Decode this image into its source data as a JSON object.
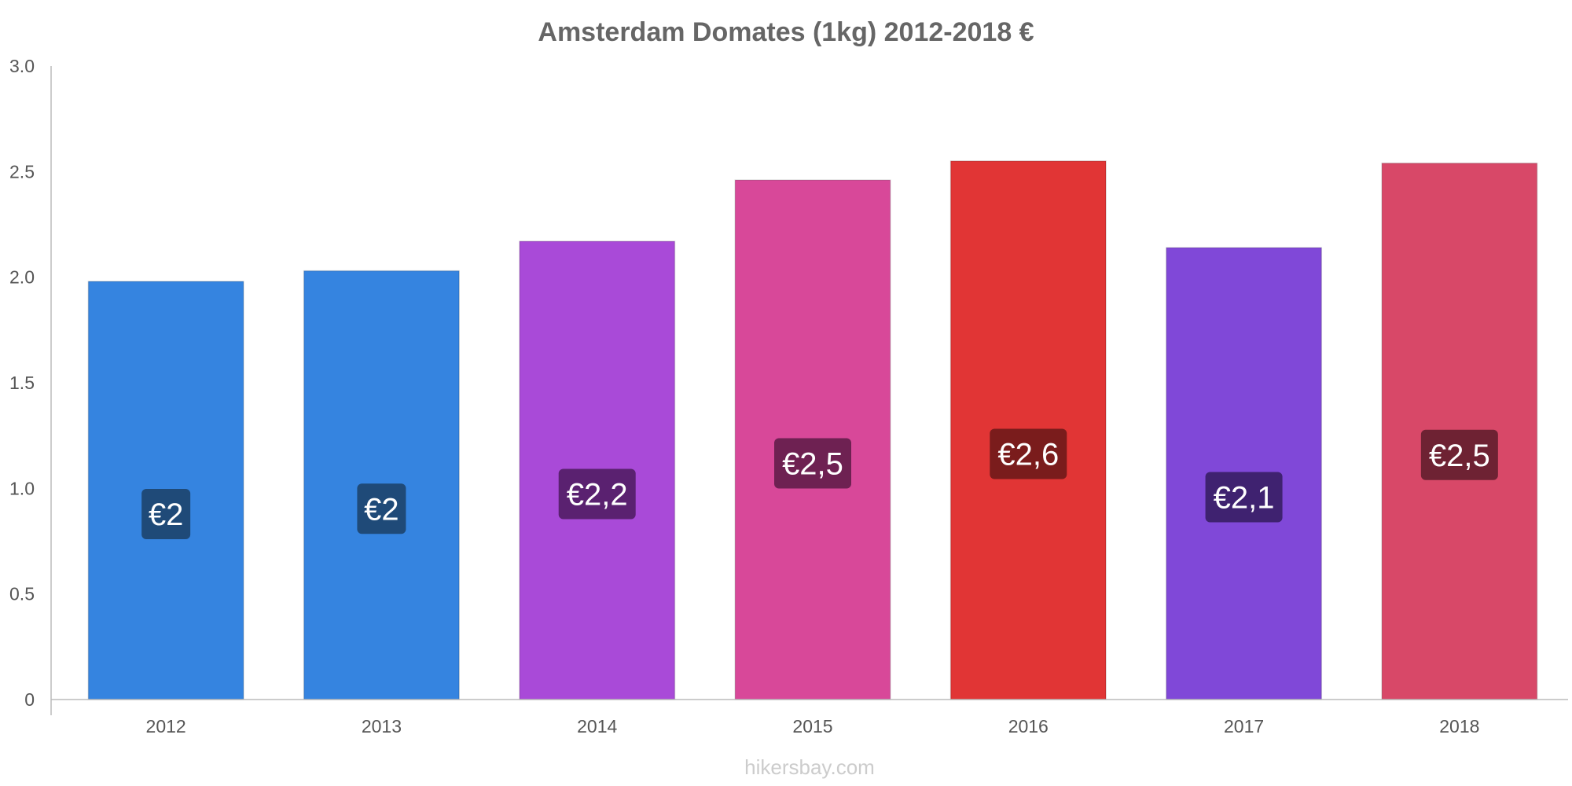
{
  "chart_data": {
    "type": "bar",
    "title": "Amsterdam Domates (1kg) 2012-2018 €",
    "xlabel": "",
    "ylabel": "",
    "categories": [
      "2012",
      "2013",
      "2014",
      "2015",
      "2016",
      "2017",
      "2018"
    ],
    "values": [
      1.98,
      2.03,
      2.17,
      2.46,
      2.55,
      2.14,
      2.54
    ],
    "data_labels": [
      "€2",
      "€2",
      "€2,2",
      "€2,5",
      "€2,6",
      "€2,1",
      "€2,5"
    ],
    "bar_colors": [
      "#3584e0",
      "#3584e0",
      "#a94ad8",
      "#d84899",
      "#e13535",
      "#8048d8",
      "#d84868"
    ],
    "label_bg_colors": [
      "#1f4a78",
      "#1f4a78",
      "#5a2170",
      "#6e2152",
      "#7a1c1c",
      "#3f2270",
      "#6e2233"
    ],
    "ylim": [
      0,
      3.0
    ],
    "yticks": [
      "0",
      "0.5",
      "1.0",
      "1.5",
      "2.0",
      "2.5",
      "3.0"
    ],
    "grid": false,
    "legend": "none"
  },
  "watermark": "hikersbay.com"
}
